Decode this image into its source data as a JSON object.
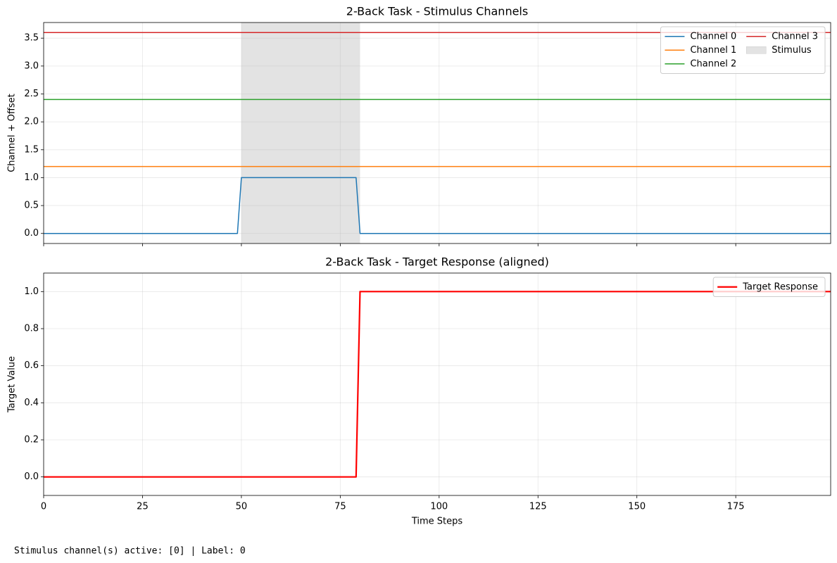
{
  "chart_data": [
    {
      "type": "line",
      "title": "2-Back Task - Stimulus Channels",
      "y_label": "Channel + Offset",
      "x": [
        0,
        49,
        50,
        79,
        80,
        199
      ],
      "series": [
        {
          "name": "Channel 0",
          "color": "#1f77b4",
          "line_width": 1.5,
          "values": [
            0,
            0,
            1,
            1,
            0,
            0
          ]
        },
        {
          "name": "Channel 1",
          "color": "#ff7f0e",
          "line_width": 1.5,
          "values": [
            1.2,
            1.2,
            1.2,
            1.2,
            1.2,
            1.2
          ]
        },
        {
          "name": "Channel 2",
          "color": "#2ca02c",
          "line_width": 1.5,
          "values": [
            2.4,
            2.4,
            2.4,
            2.4,
            2.4,
            2.4
          ]
        },
        {
          "name": "Channel 3",
          "color": "#d62728",
          "line_width": 1.5,
          "values": [
            3.6,
            3.6,
            3.6,
            3.6,
            3.6,
            3.6
          ]
        }
      ],
      "spans": [
        {
          "name": "Stimulus",
          "x": [
            50,
            80
          ],
          "color": "#e3e3e3"
        }
      ],
      "xlim": [
        0,
        199
      ],
      "ylim": [
        -0.18,
        3.78
      ],
      "xticks": [
        0,
        25,
        50,
        75,
        100,
        125,
        150,
        175
      ],
      "x_tick_labels": false,
      "yticks": [
        {
          "value": 0,
          "label": "0.0"
        },
        0.5,
        {
          "value": 1,
          "label": "1.0"
        },
        1.5,
        {
          "value": 2,
          "label": "2.0"
        },
        2.5,
        {
          "value": 3,
          "label": "3.0"
        },
        3.5
      ],
      "grid": true,
      "legend": "upper right",
      "legend_columns": 2
    },
    {
      "type": "line",
      "title": "2-Back Task - Target Response (aligned)",
      "y_label": "Target Value",
      "x_label": "Time Steps",
      "x": [
        0,
        79,
        80,
        199
      ],
      "series": [
        {
          "name": "Target Response",
          "color": "#ff0000",
          "line_width": 2.2,
          "values": [
            0,
            0,
            1,
            1
          ]
        }
      ],
      "xlim": [
        0,
        199
      ],
      "ylim": [
        -0.1,
        1.1
      ],
      "xticks": [
        0,
        25,
        50,
        75,
        100,
        125,
        150,
        175
      ],
      "x_tick_labels": true,
      "yticks": [
        {
          "value": 0,
          "label": "0.0"
        },
        0.2,
        0.4,
        0.6,
        0.8,
        {
          "value": 1,
          "label": "1.0"
        }
      ],
      "grid": true,
      "legend": "upper right",
      "legend_columns": 1
    }
  ],
  "caption": "Stimulus channel(s) active: [0] | Label: 0"
}
